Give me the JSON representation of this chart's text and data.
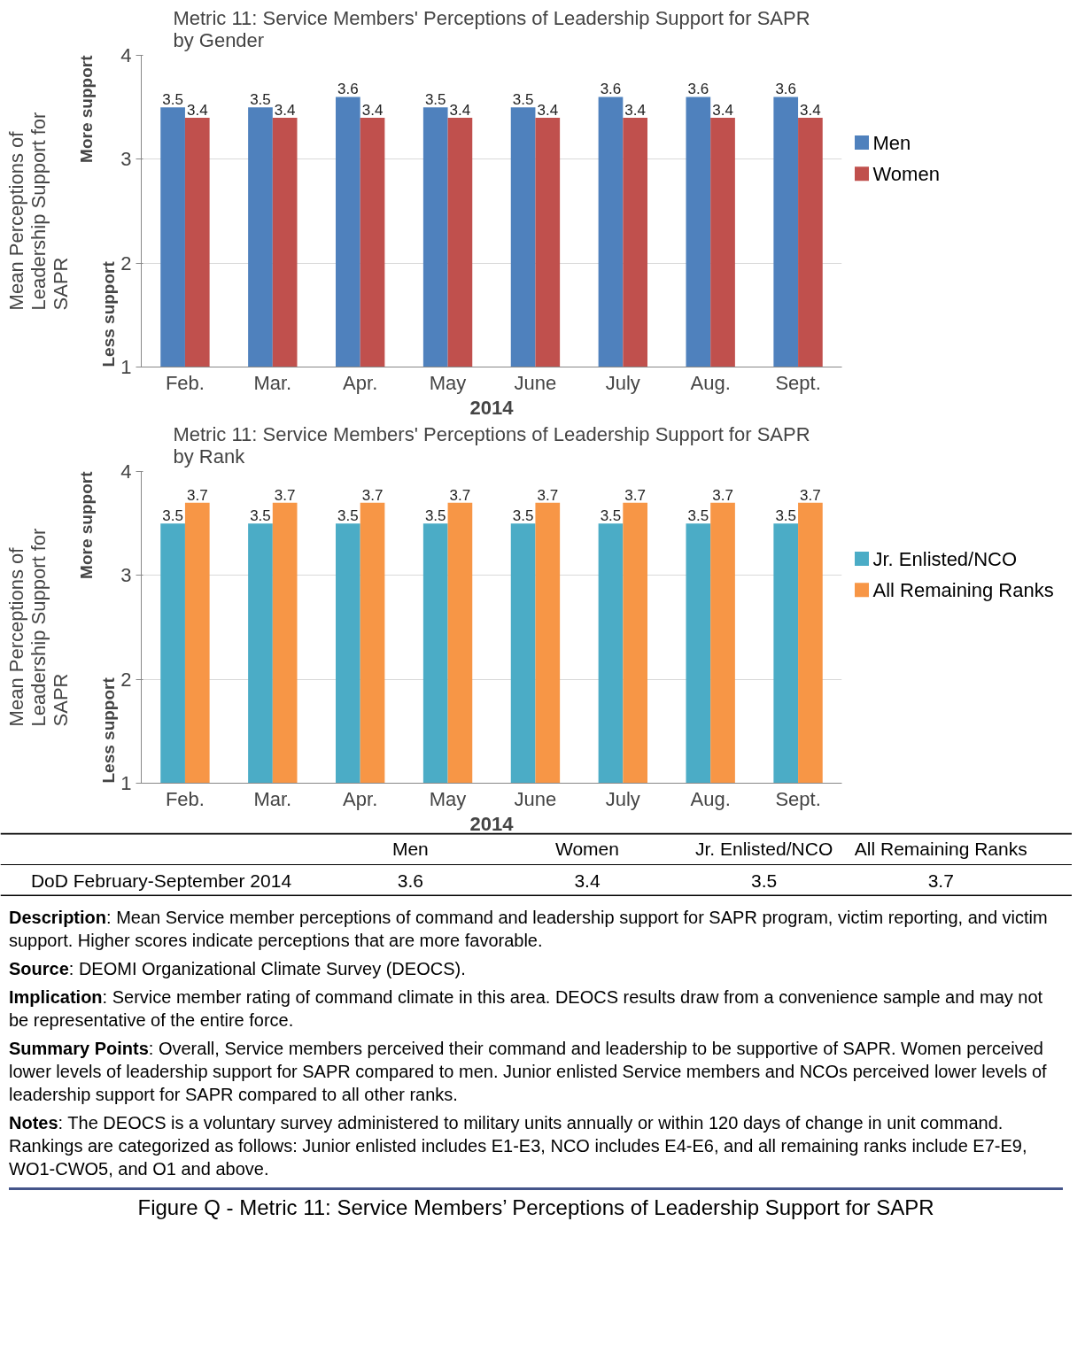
{
  "chart_data": [
    {
      "type": "bar",
      "title": "Metric 11: Service Members' Perceptions of Leadership Support for SAPR by Gender",
      "xlabel": "2014",
      "ylabel": "Mean Perceptions of Leadership Support for SAPR",
      "categories": [
        "Feb.",
        "Mar.",
        "Apr.",
        "May",
        "June",
        "July",
        "Aug.",
        "Sept."
      ],
      "series": [
        {
          "name": "Men",
          "color": "#4f81bd",
          "values": [
            3.5,
            3.5,
            3.6,
            3.5,
            3.5,
            3.6,
            3.6,
            3.6
          ]
        },
        {
          "name": "Women",
          "color": "#c0504d",
          "values": [
            3.4,
            3.4,
            3.4,
            3.4,
            3.4,
            3.4,
            3.4,
            3.4
          ]
        }
      ],
      "ylim": [
        1,
        4
      ],
      "yticks": [
        1,
        2,
        3,
        4
      ],
      "grid": "y",
      "legend": "right",
      "data_labels": true,
      "annotations": [
        "Less support",
        "More support"
      ]
    },
    {
      "type": "bar",
      "title": "Metric 11: Service Members' Perceptions of Leadership Support for SAPR by Rank",
      "xlabel": "2014",
      "ylabel": "Mean Perceptions of Leadership Support for SAPR",
      "categories": [
        "Feb.",
        "Mar.",
        "Apr.",
        "May",
        "June",
        "July",
        "Aug.",
        "Sept."
      ],
      "series": [
        {
          "name": "Jr. Enlisted/NCO",
          "color": "#4bacc6",
          "values": [
            3.5,
            3.5,
            3.5,
            3.5,
            3.5,
            3.5,
            3.5,
            3.5
          ]
        },
        {
          "name": "All Remaining Ranks",
          "color": "#f79646",
          "values": [
            3.7,
            3.7,
            3.7,
            3.7,
            3.7,
            3.7,
            3.7,
            3.7
          ]
        }
      ],
      "ylim": [
        1,
        4
      ],
      "yticks": [
        1,
        2,
        3,
        4
      ],
      "grid": "y",
      "legend": "right",
      "data_labels": true,
      "annotations": [
        "Less support",
        "More support"
      ]
    },
    {
      "type": "other",
      "title": "Figure Q - Metric 11: Service Members’ Perceptions of Leadership Support for SAPR",
      "ylabel": "DoD February-September 2014",
      "categories": [
        "Men",
        "Women",
        "Jr. Enlisted/NCO",
        "All Remaining Ranks"
      ],
      "values": [
        3.6,
        3.4,
        3.5,
        3.7
      ],
      "data_labels": true,
      "annotations": [
        "Description: Mean Service member perceptions of command and leadership support for SAPR program, victim reporting, and victim support.  Higher scores indicate perceptions that are more favorable.",
        "Source: DEOMI Organizational Climate Survey (DEOCS).",
        "Implication: Service member rating of command climate in this area.  DEOCS results draw from a convenience sample and may not be representative of the entire force.",
        "Summary Points: Overall, Service members perceived their command and leadership to be supportive of SAPR.  Women perceived lower levels of leadership support for SAPR compared to men.  Junior enlisted Service members and NCOs perceived lower levels of leadership support for SAPR compared to all other ranks.",
        "Notes: The DEOCS is a voluntary survey administered to military units annually or within 120 days of change in unit command.  Rankings are categorized as follows: Junior enlisted includes E1-E3, NCO includes E4-E6, and all remaining ranks include E7-E9, WO1-CWO5, and O1 and above."
      ]
    }
  ]
}
